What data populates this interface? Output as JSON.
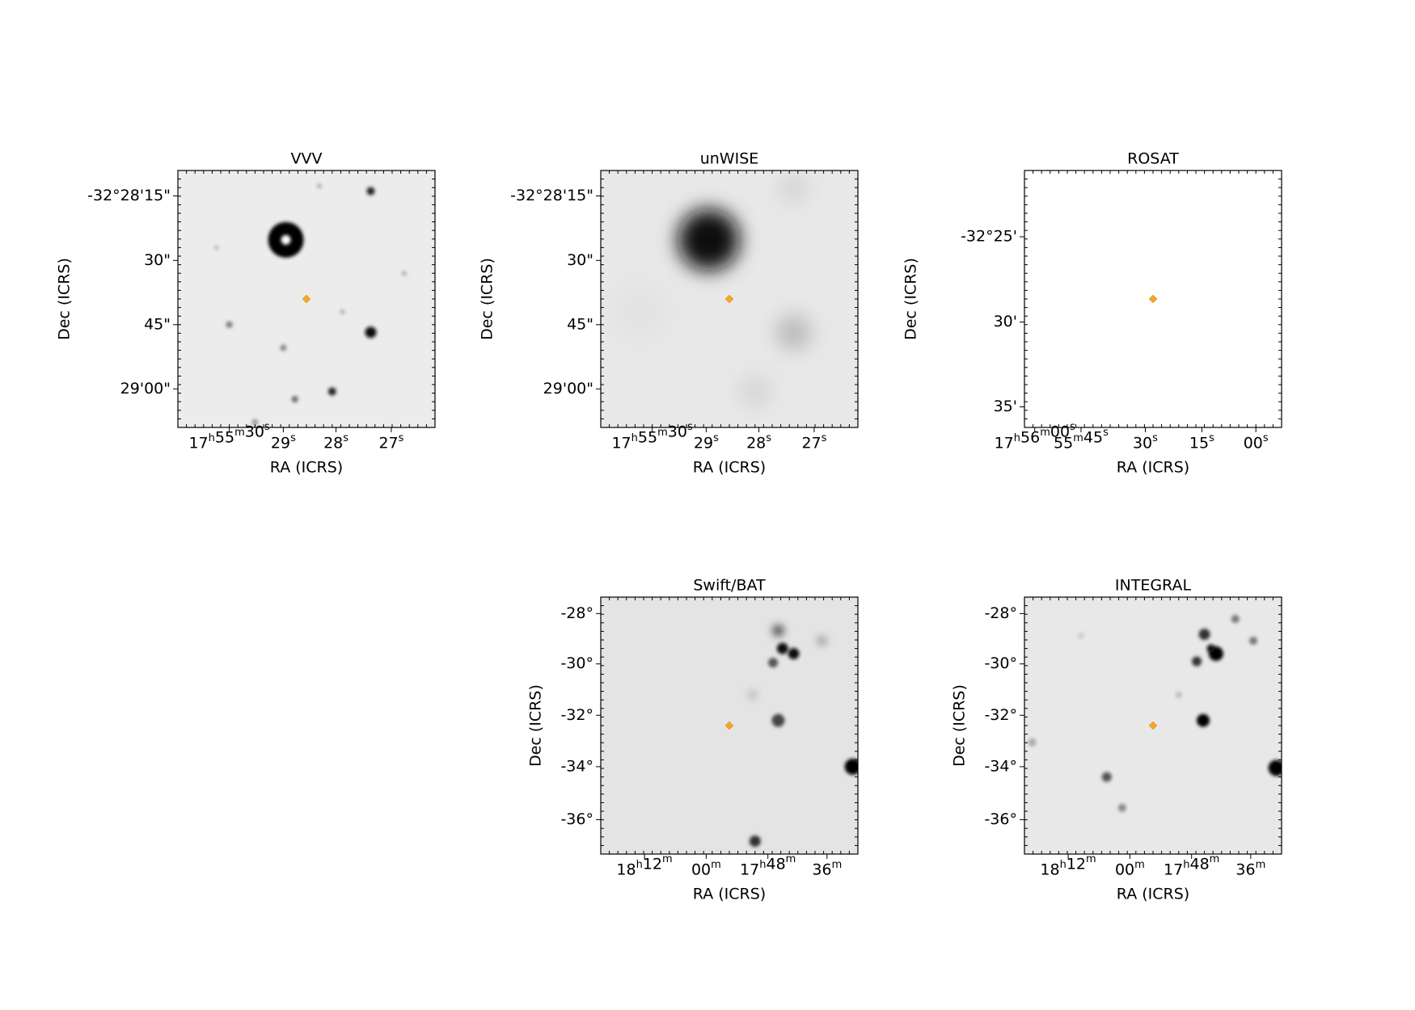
{
  "panels": [
    {
      "title": "VVV",
      "xlabel": "RA (ICRS)",
      "ylabel": "Dec (ICRS)",
      "xticks": [
        "17h55m30s",
        "29s",
        "28s",
        "27s"
      ],
      "yticks": [
        "-32°28'15\"",
        "30\"",
        "45\"",
        "29'00\""
      ]
    },
    {
      "title": "unWISE",
      "xlabel": "RA (ICRS)",
      "ylabel": "Dec (ICRS)",
      "xticks": [
        "17h55m30s",
        "29s",
        "28s",
        "27s"
      ],
      "yticks": [
        "-32°28'15\"",
        "30\"",
        "45\"",
        "29'00\""
      ]
    },
    {
      "title": "ROSAT",
      "xlabel": "RA (ICRS)",
      "ylabel": "Dec (ICRS)",
      "xticks": [
        "17h56m00s",
        "55m45s",
        "30s",
        "15s",
        "00s"
      ],
      "yticks": [
        "-32°25'",
        "30'",
        "35'"
      ]
    },
    {
      "title": "Swift/BAT",
      "xlabel": "RA (ICRS)",
      "ylabel": "Dec (ICRS)",
      "xticks": [
        "18h12m",
        "00m",
        "17h48m",
        "36m"
      ],
      "yticks": [
        "-28°",
        "-30°",
        "-32°",
        "-34°",
        "-36°"
      ]
    },
    {
      "title": "INTEGRAL",
      "xlabel": "RA (ICRS)",
      "ylabel": "Dec (ICRS)",
      "xticks": [
        "18h12m",
        "00m",
        "17h48m",
        "36m"
      ],
      "yticks": [
        "-28°",
        "-30°",
        "-32°",
        "-34°",
        "-36°"
      ]
    }
  ]
}
